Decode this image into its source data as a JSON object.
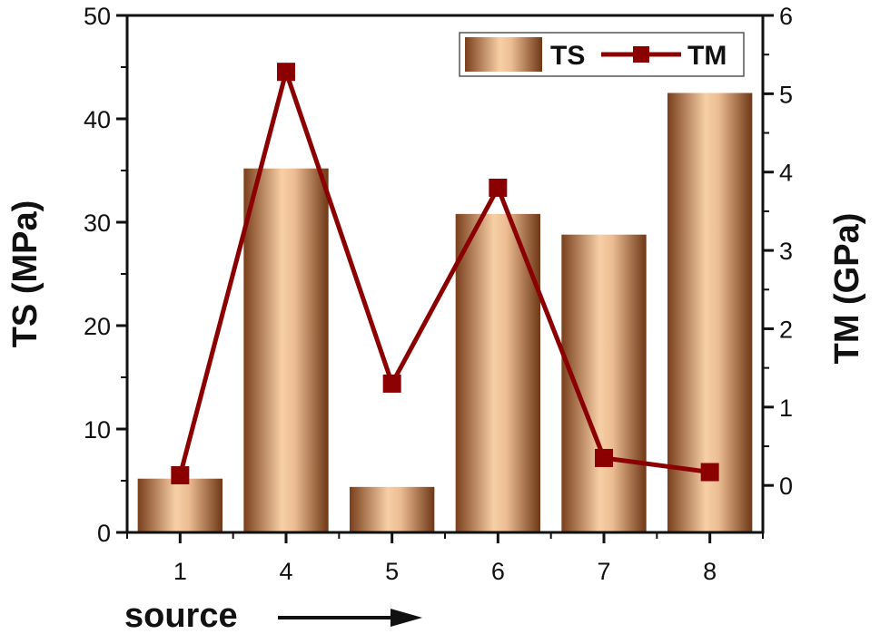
{
  "chart_data": {
    "type": "bar",
    "categories": [
      "1",
      "4",
      "5",
      "6",
      "7",
      "8"
    ],
    "series": [
      {
        "name": "TS",
        "type": "bar",
        "axis": "left",
        "values": [
          5.2,
          35.2,
          4.4,
          30.8,
          28.8,
          42.5
        ]
      },
      {
        "name": "TM",
        "type": "line",
        "axis": "right",
        "values": [
          0.13,
          5.28,
          1.3,
          3.8,
          0.35,
          0.17
        ]
      }
    ],
    "xlabel": "source",
    "ylabel": "TS (MPa)",
    "y2label": "TM (GPa)",
    "ylim": [
      0,
      50
    ],
    "y2lim": [
      -0.6,
      6
    ],
    "yticks": [
      0,
      10,
      20,
      30,
      40,
      50
    ],
    "y2ticks": [
      0,
      1,
      2,
      3,
      4,
      5,
      6
    ],
    "legend_position": "top-right",
    "grid": false,
    "colors": {
      "bar_dark": "#7a3f1c",
      "bar_light": "#f7cfa6",
      "line": "#8b0000",
      "axis": "#111111"
    }
  }
}
